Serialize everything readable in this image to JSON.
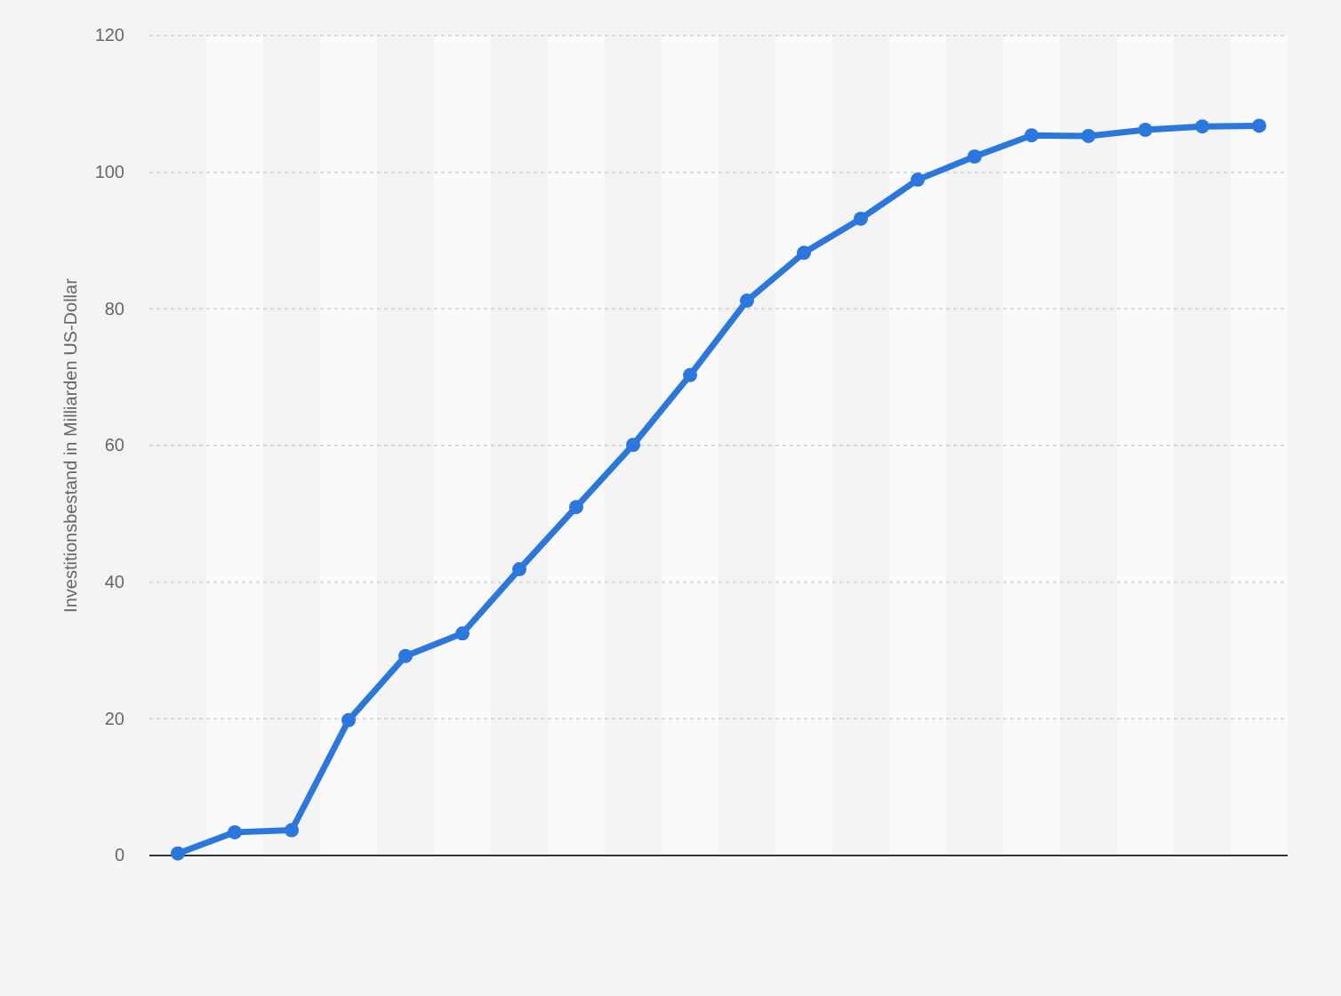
{
  "chart_data": {
    "type": "line",
    "ylabel": "Investitionsbestand in Milliarden US-Dollar",
    "categories": [
      null,
      null,
      null,
      null,
      null,
      null,
      null,
      null,
      null,
      null,
      null,
      null,
      null,
      null,
      null,
      null,
      null,
      null,
      null,
      null
    ],
    "series": [
      {
        "color": "#2a78de",
        "values": [
          0.3,
          3.4,
          3.7,
          19.8,
          29.2,
          32.5,
          41.9,
          51.0,
          60.1,
          70.3,
          81.2,
          88.2,
          93.2,
          98.9,
          102.3,
          105.4,
          105.3,
          106.2,
          106.7,
          106.8
        ]
      }
    ],
    "ylim": [
      0,
      120
    ],
    "yticks": [
      0,
      20,
      40,
      60,
      80,
      100,
      120
    ],
    "grid": "y",
    "marker": "circle",
    "line_style": "solid"
  }
}
